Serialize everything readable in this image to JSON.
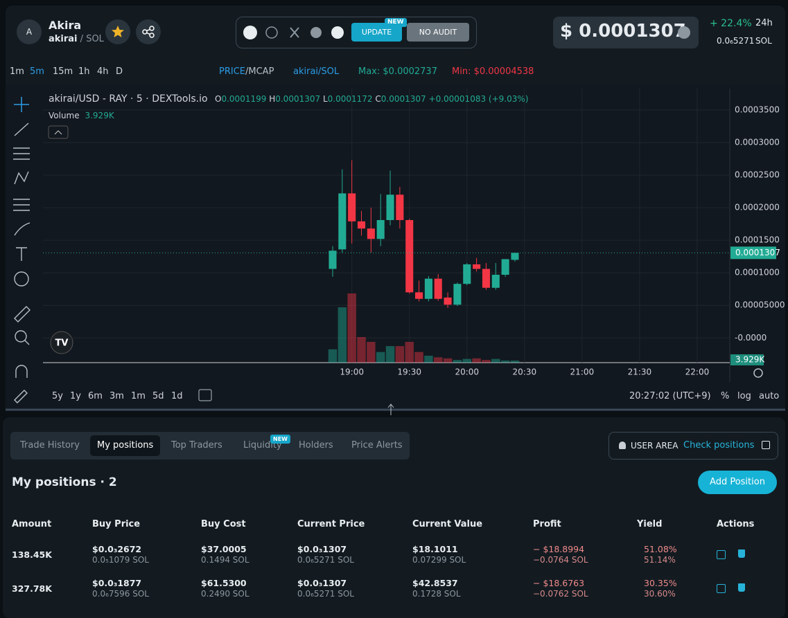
{
  "header": {
    "avatar": "A",
    "name": "Akira",
    "pair_base": "akirai",
    "pair_sep": "/",
    "pair_quote": "SOL",
    "update": "UPDATE",
    "new_badge": "NEW",
    "no_audit": "NO AUDIT",
    "price": "$ 0.0001307",
    "change": "+ 22.4%",
    "change_period": "24h",
    "price_sol": "0.0₆5271",
    "price_sol_unit": "SOL"
  },
  "toolbar": {
    "intervals": [
      "1m",
      "5m",
      "15m",
      "1h",
      "4h",
      "D"
    ],
    "price_mode": "PRICE",
    "mcap_mode": "/MCAP",
    "pair": "akirai/SOL",
    "max": "Max: $0.0002737",
    "min": "Min: $0.00004538"
  },
  "chart": {
    "type": "candlestick",
    "symbol": "akirai/USD - RAY · 5 · DEXTools.io",
    "legend": {
      "o_label": "O",
      "o": "0.0001199",
      "h_label": "H",
      "h": "0.0001307",
      "l_label": "L",
      "l": "0.0001172",
      "c_label": "C",
      "c": "0.0001307",
      "change": "+0.00001083 (+9.03%)"
    },
    "volume_label": "Volume",
    "volume_value": "3.929K",
    "up_color": "#22ab94",
    "down_color": "#f23645",
    "x": [
      "18:50",
      "18:55",
      "19:00",
      "19:05",
      "19:10",
      "19:15",
      "19:20",
      "19:25",
      "19:30",
      "19:35",
      "19:40",
      "19:45",
      "19:50",
      "19:55",
      "20:00",
      "20:05",
      "20:10",
      "20:15",
      "20:20",
      "20:25"
    ],
    "open": [
      0.000106,
      0.000136,
      0.000222,
      0.000179,
      0.000168,
      0.000152,
      0.000181,
      0.00022,
      0.000181,
      7e-05,
      6e-05,
      9.1e-05,
      6.2e-05,
      5.1e-05,
      8.3e-05,
      0.000113,
      0.000106,
      7.7e-05,
      9.7e-05,
      0.0001199
    ],
    "high": [
      0.000141,
      0.000259,
      0.000273,
      0.000195,
      0.0002,
      0.000221,
      0.000257,
      0.000232,
      0.000183,
      8.8e-05,
      9.5e-05,
      9.8e-05,
      7e-05,
      8.5e-05,
      0.000115,
      0.000123,
      0.000115,
      0.000115,
      0.000121,
      0.0001307
    ],
    "low": [
      9.4e-05,
      0.000131,
      0.000145,
      0.000157,
      0.000131,
      0.000141,
      0.000173,
      0.000168,
      6.8e-05,
      5.6e-05,
      5.6e-05,
      5.7e-05,
      4.6e-05,
      4.9e-05,
      8.1e-05,
      0.000102,
      7.4e-05,
      7.4e-05,
      9.4e-05,
      0.0001172
    ],
    "close": [
      0.000134,
      0.000222,
      0.000179,
      0.000168,
      0.000152,
      0.000181,
      0.00022,
      0.000181,
      7e-05,
      6e-05,
      9.1e-05,
      6e-05,
      5.1e-05,
      8.3e-05,
      0.000113,
      0.000106,
      7.7e-05,
      9.7e-05,
      0.000121,
      0.0001307
    ],
    "volume": [
      25,
      104,
      130,
      48,
      39,
      20,
      31,
      31,
      39,
      20,
      13,
      10,
      8,
      5,
      7,
      8,
      5,
      7,
      4,
      3.929
    ],
    "ylim": [
      -3.8e-05,
      0.000383
    ],
    "yticks": [
      {
        "value": 0.00035,
        "label": "0.0003500"
      },
      {
        "value": 0.0003,
        "label": "0.0003000"
      },
      {
        "value": 0.00025,
        "label": "0.0002500"
      },
      {
        "value": 0.0002,
        "label": "0.0002000"
      },
      {
        "value": 0.00015,
        "label": "0.0001500"
      },
      {
        "value": 0.0001,
        "label": "0.0001000"
      },
      {
        "value": 5e-05,
        "label": "0.00005000"
      },
      {
        "value": 0,
        "label": "-0.0000"
      }
    ],
    "xlim": [
      "16:19",
      "22:17"
    ],
    "xticks": [
      "19:00",
      "19:30",
      "20:00",
      "20:30",
      "21:00",
      "21:30",
      "22:00"
    ],
    "last_price": {
      "value": 0.0001307,
      "label": "0.0001307"
    },
    "last_volume_label": "3.929K",
    "ranges": [
      "5y",
      "1y",
      "6m",
      "3m",
      "1m",
      "5d",
      "1d"
    ],
    "clock": "20:27:02 (UTC+9)",
    "scale_options": [
      "%",
      "log",
      "auto"
    ]
  },
  "tabs": {
    "items": [
      "Trade History",
      "My positions",
      "Top Traders",
      "Liquidity",
      "Holders",
      "Price Alerts"
    ],
    "liquidity_badge": "NEW"
  },
  "user_area": {
    "label": "USER AREA",
    "link": "Check positions"
  },
  "positions": {
    "title": "My positions · 2",
    "add_button": "Add Position",
    "columns": [
      "Amount",
      "Buy Price",
      "Buy Cost",
      "Current Price",
      "Current Value",
      "Profit",
      "Yield",
      "Actions"
    ],
    "rows": [
      [
        "138.45K",
        [
          "$0.0₃2672",
          "0.0₅1079 SOL"
        ],
        [
          "$37.0005",
          "0.1494 SOL"
        ],
        [
          "$0.0₃1307",
          "0.0₆5271 SOL"
        ],
        [
          "$18.1011",
          "0.07299 SOL"
        ],
        [
          "− $18.8994",
          "−0.0764 SOL"
        ],
        [
          "51.08%",
          "51.14%"
        ]
      ],
      [
        "327.78K",
        [
          "$0.0₃1877",
          "0.0₆7596 SOL"
        ],
        [
          "$61.5300",
          "0.2490 SOL"
        ],
        [
          "$0.0₃1307",
          "0.0₆5271 SOL"
        ],
        [
          "$42.8537",
          "0.1728 SOL"
        ],
        [
          "− $18.6763",
          "−0.0762 SOL"
        ],
        [
          "30.35%",
          "30.60%"
        ]
      ]
    ]
  }
}
